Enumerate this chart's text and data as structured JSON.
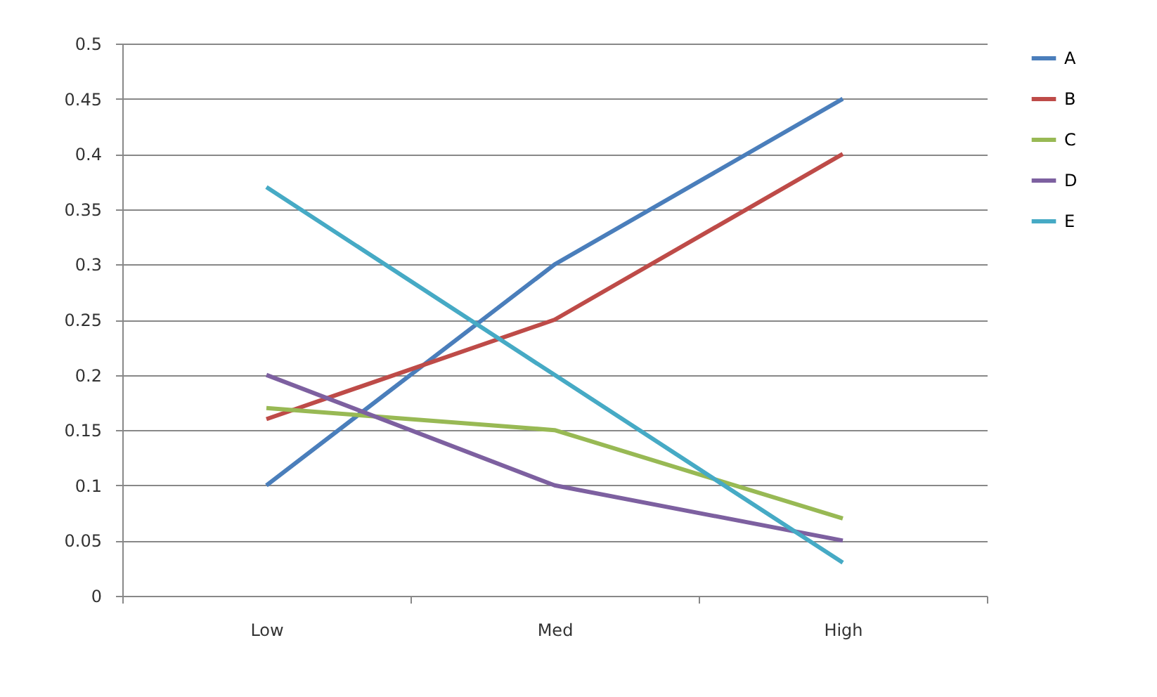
{
  "chart_data": {
    "type": "line",
    "categories": [
      "Low",
      "Med",
      "High"
    ],
    "series": [
      {
        "name": "A",
        "color": "#4a7ebb",
        "values": [
          0.1,
          0.3,
          0.45
        ]
      },
      {
        "name": "B",
        "color": "#be4b48",
        "values": [
          0.16,
          0.25,
          0.4
        ]
      },
      {
        "name": "C",
        "color": "#98b954",
        "values": [
          0.17,
          0.15,
          0.07
        ]
      },
      {
        "name": "D",
        "color": "#7d60a0",
        "values": [
          0.2,
          0.1,
          0.05
        ]
      },
      {
        "name": "E",
        "color": "#46aac5",
        "values": [
          0.37,
          0.2,
          0.03
        ]
      }
    ],
    "ylim": [
      0,
      0.5
    ],
    "yticks": [
      0,
      0.05,
      0.1,
      0.15,
      0.2,
      0.25,
      0.3,
      0.35,
      0.4,
      0.45,
      0.5
    ],
    "grid": "y",
    "legend": "right",
    "marker": "none",
    "line_style": "solid"
  }
}
